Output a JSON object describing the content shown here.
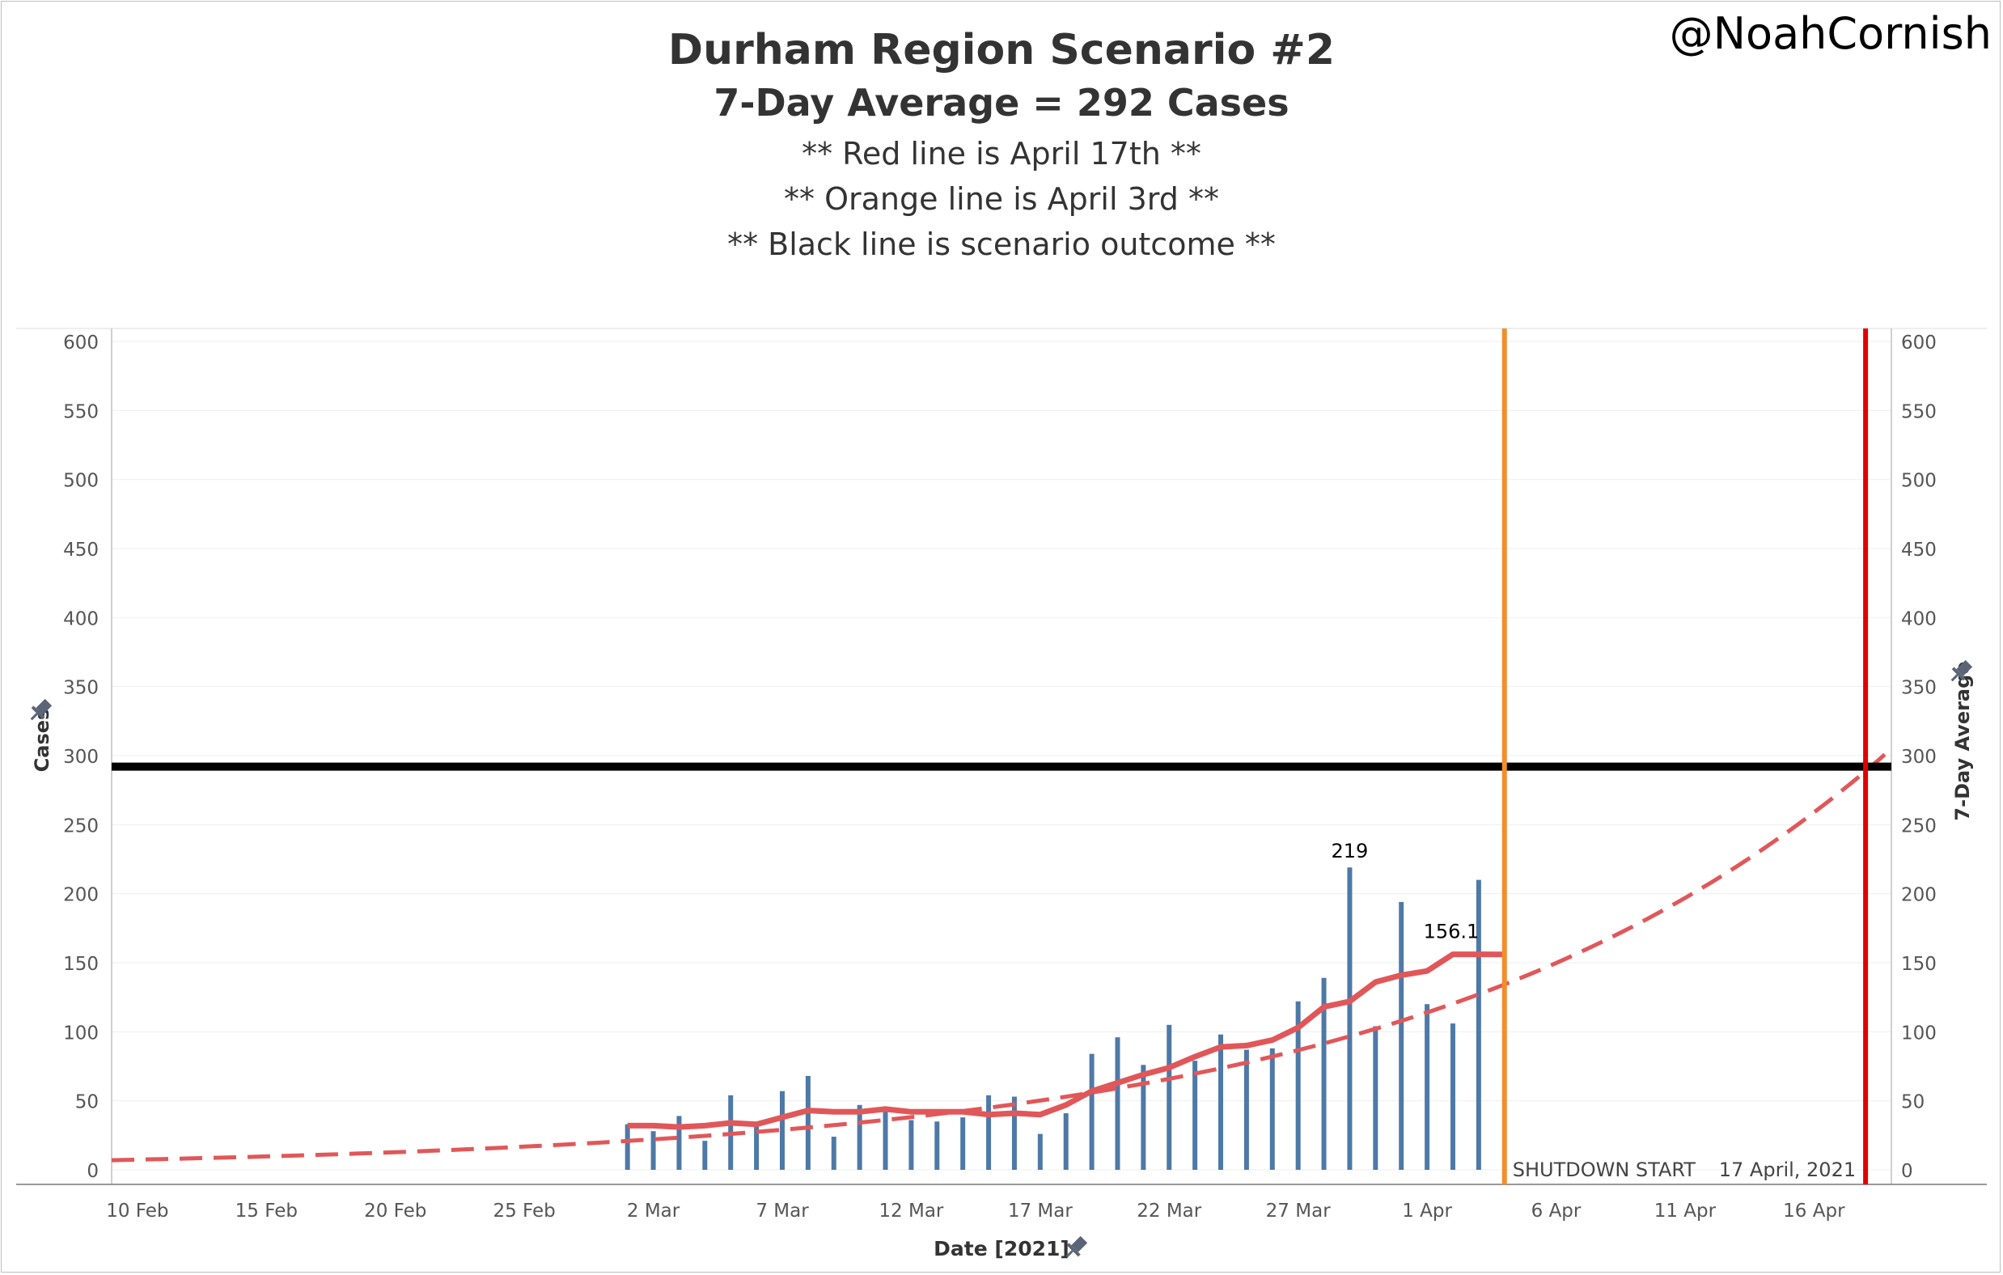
{
  "header": {
    "title": "Durham Region Scenario #2",
    "subtitle": "7-Day Average = 292 Cases",
    "notes": [
      "** Red line is April 17th **",
      "** Orange line is April 3rd **",
      "** Black line is scenario outcome **"
    ],
    "handle": "@NoahCornish"
  },
  "chart_data": {
    "type": "bar",
    "xlabel": "Date [2021]",
    "ylabel_left": "Cases",
    "ylabel_right": "7-Day Average",
    "ylim": [
      0,
      600
    ],
    "y_ticks": [
      0,
      50,
      100,
      150,
      200,
      250,
      300,
      350,
      400,
      450,
      500,
      550,
      600
    ],
    "x_ticks": [
      "10 Feb",
      "15 Feb",
      "20 Feb",
      "25 Feb",
      "2 Mar",
      "7 Mar",
      "12 Mar",
      "17 Mar",
      "22 Mar",
      "27 Mar",
      "1 Apr",
      "6 Apr",
      "11 Apr",
      "16 Apr"
    ],
    "x_tick_days": [
      10,
      15,
      20,
      25,
      30,
      35,
      40,
      45,
      50,
      55,
      60,
      65,
      70,
      75
    ],
    "x_range_days": [
      9,
      78
    ],
    "bars": {
      "days": [
        29,
        30,
        31,
        32,
        33,
        34,
        35,
        36,
        37,
        38,
        39,
        40,
        41,
        42,
        43,
        44,
        45,
        46,
        47,
        48,
        49,
        50,
        51,
        52,
        53,
        54,
        55,
        56,
        57,
        58,
        59,
        60,
        61
      ],
      "values": [
        33,
        28,
        39,
        21,
        54,
        32,
        57,
        68,
        24,
        47,
        43,
        36,
        35,
        38,
        54,
        53,
        26,
        41,
        84,
        96,
        76,
        105,
        79,
        98,
        87,
        88,
        122,
        139,
        219,
        104,
        194,
        120,
        106
      ],
      "last_value": 210,
      "color": "#4e79a7"
    },
    "seven_day_average": {
      "days": [
        29,
        30,
        31,
        32,
        33,
        34,
        35,
        36,
        37,
        38,
        39,
        40,
        41,
        42,
        43,
        44,
        45,
        46,
        47,
        48,
        49,
        50,
        51,
        52,
        53,
        54,
        55,
        56,
        57,
        58,
        59,
        60,
        61,
        62,
        63
      ],
      "values": [
        32,
        32,
        31,
        32,
        34,
        33,
        38,
        43,
        42,
        42,
        44,
        42,
        42,
        42,
        40,
        41,
        40,
        47,
        57,
        63,
        69,
        74,
        82,
        89,
        90,
        94,
        103,
        118,
        122,
        136,
        141,
        144,
        156.1,
        156.1,
        156
      ],
      "color": "#e15759"
    },
    "projection": {
      "style": "dashed",
      "color": "#e15759",
      "start_day": 9,
      "start_value": 7,
      "end_day": 78,
      "end_value": 305,
      "value_at_day_63": 142
    },
    "annotations": {
      "peak_label": "219",
      "avg_label": "156.1",
      "shutdown_label": "SHUTDOWN START",
      "date_label": "17 April, 2021"
    },
    "reference_lines": {
      "scenario_outcome": {
        "value": 292,
        "color": "#000000"
      },
      "orange_day": 63,
      "orange_color": "#f28e2b",
      "red_day": 77,
      "red_color": "#e00000"
    }
  }
}
